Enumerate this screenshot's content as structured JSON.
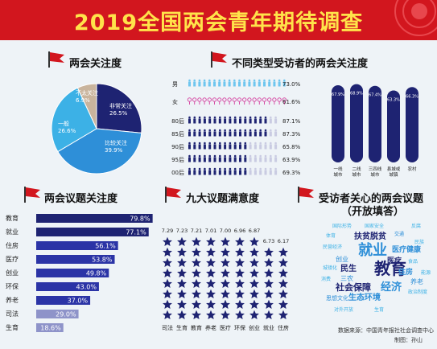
{
  "header": {
    "title": "2019全国两会青年期待调查"
  },
  "colors": {
    "header_red": "#d2161e",
    "title_yellow": "#ffe34a",
    "navy": "#1e2372",
    "mid_blue": "#2e8fd8",
    "light_blue": "#3cb1e6",
    "beige": "#c9b49d",
    "pink": "#d64fa6",
    "sky": "#6ec6ef",
    "grey_bar": "#8e93c9"
  },
  "sections": {
    "attention": "两会关注度",
    "type_attention": "不同类型受访者的两会关注度",
    "issues": "两会议题关注度",
    "satisfaction": "九大议题满意度",
    "concern_line1": "受访者关心的两会议题",
    "concern_line2": "（开放填答）"
  },
  "chart_data": [
    {
      "type": "pie",
      "title": "两会关注度",
      "slices": [
        {
          "label": "非常关注",
          "value": 26.5,
          "value_label": "26.5%",
          "color": "#1e2372"
        },
        {
          "label": "比较关注",
          "value": 39.9,
          "value_label": "39.9%",
          "color": "#2e8fd8"
        },
        {
          "label": "一般",
          "value": 26.6,
          "value_label": "26.6%",
          "color": "#3cb1e6"
        },
        {
          "label": "不太关注",
          "value": 6.9,
          "value_label": "6.9%",
          "color": "#c9b49d"
        }
      ]
    },
    {
      "type": "bar",
      "title": "不同类型受访者的两会关注度",
      "categories": [
        "男",
        "女",
        "80后",
        "85后",
        "90后",
        "95后",
        "00后"
      ],
      "values": [
        73.0,
        61.6,
        87.1,
        87.3,
        65.8,
        63.9,
        69.3
      ],
      "value_labels": [
        "73.0%",
        "61.6%",
        "87.1%",
        "87.3%",
        "65.8%",
        "63.9%",
        "69.3%"
      ],
      "xlim": [
        0,
        100
      ]
    },
    {
      "type": "bar",
      "categories": [
        "一线\n城市",
        "二线\n城市",
        "三四线\n城市",
        "县城或\n城镇",
        "农村"
      ],
      "values": [
        67.9,
        68.9,
        67.4,
        63.3,
        66.3
      ],
      "value_labels": [
        "67.9%",
        "68.9%",
        "67.4%",
        "63.3%",
        "66.3%"
      ],
      "ylim": [
        0,
        100
      ]
    },
    {
      "type": "bar",
      "title": "两会议题关注度",
      "categories": [
        "教育",
        "就业",
        "住房",
        "医疗",
        "创业",
        "环保",
        "养老",
        "司法",
        "生育"
      ],
      "values": [
        79.8,
        77.1,
        56.1,
        53.8,
        49.8,
        43.0,
        37.0,
        29.0,
        18.6
      ],
      "value_labels": [
        "79.8%",
        "77.1%",
        "56.1%",
        "53.8%",
        "49.8%",
        "43.0%",
        "37.0%",
        "29.0%",
        "18.6%"
      ],
      "xlim": [
        0,
        100
      ]
    },
    {
      "type": "bar",
      "title": "九大议题满意度",
      "categories": [
        "司法",
        "生育",
        "教育",
        "养老",
        "医疗",
        "环保",
        "创业",
        "就业",
        "住房"
      ],
      "values": [
        7.29,
        7.23,
        7.21,
        7.01,
        7.0,
        6.96,
        6.87,
        6.73,
        6.17
      ],
      "value_labels": [
        "7.29",
        "7.23",
        "7.21",
        "7.01",
        "7.00",
        "6.96",
        "6.87",
        "6.73",
        "6.17"
      ],
      "ylim": [
        0,
        10
      ]
    }
  ],
  "word_cloud": [
    {
      "text": "国际形势",
      "size": 6,
      "color": "#3cb1e6"
    },
    {
      "text": "国家安全",
      "size": 6,
      "color": "#3cb1e6"
    },
    {
      "text": "体育",
      "size": 6,
      "color": "#3cb1e6"
    },
    {
      "text": "扶贫脱贫",
      "size": 10,
      "color": "#1e2372"
    },
    {
      "text": "交通",
      "size": 6,
      "color": "#2e8fd8"
    },
    {
      "text": "反腐",
      "size": 6,
      "color": "#3cb1e6"
    },
    {
      "text": "民族",
      "size": 6,
      "color": "#3cb1e6"
    },
    {
      "text": "就业",
      "size": 18,
      "color": "#2e8fd8"
    },
    {
      "text": "民营经济",
      "size": 6,
      "color": "#3cb1e6"
    },
    {
      "text": "医疗健康",
      "size": 9,
      "color": "#2e8fd8"
    },
    {
      "text": "医疗",
      "size": 9,
      "color": "#1e2372"
    },
    {
      "text": "创业",
      "size": 8,
      "color": "#2e8fd8"
    },
    {
      "text": "食品",
      "size": 6,
      "color": "#3cb1e6"
    },
    {
      "text": "城镇化",
      "size": 6,
      "color": "#3cb1e6"
    },
    {
      "text": "民生",
      "size": 10,
      "color": "#1e2372"
    },
    {
      "text": "教育",
      "size": 20,
      "color": "#1e2372"
    },
    {
      "text": "住房",
      "size": 9,
      "color": "#2e8fd8"
    },
    {
      "text": "能源",
      "size": 6,
      "color": "#3cb1e6"
    },
    {
      "text": "三农",
      "size": 8,
      "color": "#2e8fd8"
    },
    {
      "text": "消费",
      "size": 6,
      "color": "#3cb1e6"
    },
    {
      "text": "养老",
      "size": 8,
      "color": "#2e8fd8"
    },
    {
      "text": "社会保障",
      "size": 11,
      "color": "#1e2372"
    },
    {
      "text": "经济",
      "size": 13,
      "color": "#2e8fd8"
    },
    {
      "text": "政治制度",
      "size": 6,
      "color": "#3cb1e6"
    },
    {
      "text": "思想文化",
      "size": 7,
      "color": "#2e8fd8"
    },
    {
      "text": "生态环境",
      "size": 10,
      "color": "#2e8fd8"
    },
    {
      "text": "对外开放",
      "size": 6,
      "color": "#3cb1e6"
    },
    {
      "text": "生育",
      "size": 6,
      "color": "#3cb1e6"
    }
  ],
  "footer": {
    "source": "数据来源：中国青年报社社会调查中心",
    "author": "制图：孙山"
  }
}
